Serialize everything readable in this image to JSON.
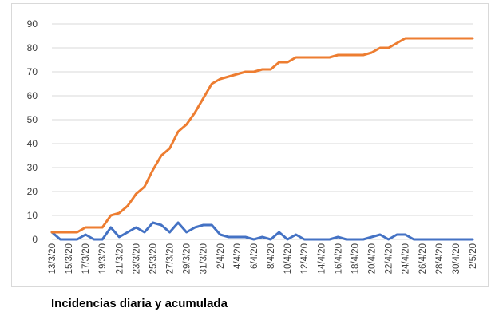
{
  "caption": "Incidencias diaria y acumulada",
  "chart_data": {
    "type": "line",
    "title": "",
    "xlabel": "",
    "ylabel": "",
    "ylim": [
      0,
      90
    ],
    "yticks": [
      0,
      10,
      20,
      30,
      40,
      50,
      60,
      70,
      80,
      90
    ],
    "grid": true,
    "legend": "none",
    "x": [
      "13/3/20",
      "14/3/20",
      "15/3/20",
      "16/3/20",
      "17/3/20",
      "18/3/20",
      "19/3/20",
      "20/3/20",
      "21/3/20",
      "22/3/20",
      "23/3/20",
      "24/3/20",
      "25/3/20",
      "26/3/20",
      "27/3/20",
      "28/3/20",
      "29/3/20",
      "30/3/20",
      "31/3/20",
      "1/4/20",
      "2/4/20",
      "3/4/20",
      "4/4/20",
      "5/4/20",
      "6/4/20",
      "7/4/20",
      "8/4/20",
      "9/4/20",
      "10/4/20",
      "11/4/20",
      "12/4/20",
      "13/4/20",
      "14/4/20",
      "15/4/20",
      "16/4/20",
      "17/4/20",
      "18/4/20",
      "19/4/20",
      "20/4/20",
      "21/4/20",
      "22/4/20",
      "23/4/20",
      "24/4/20",
      "25/4/20",
      "26/4/20",
      "27/4/20",
      "28/4/20",
      "29/4/20",
      "30/4/20",
      "1/5/20",
      "2/5/20"
    ],
    "tick_labels": [
      "13/3/20",
      "15/3/20",
      "17/3/20",
      "19/3/20",
      "21/3/20",
      "23/3/20",
      "25/3/20",
      "27/3/20",
      "29/3/20",
      "31/3/20",
      "2/4/20",
      "4/4/20",
      "6/4/20",
      "8/4/20",
      "10/4/20",
      "12/4/20",
      "14/4/20",
      "16/4/20",
      "18/4/20",
      "20/4/20",
      "22/4/20",
      "24/4/20",
      "26/4/20",
      "28/4/20",
      "30/4/20",
      "2/5/20"
    ],
    "series": [
      {
        "color": "#4472c4",
        "values": [
          3,
          0,
          0,
          0,
          2,
          0,
          0,
          5,
          1,
          3,
          5,
          3,
          7,
          6,
          3,
          7,
          3,
          5,
          6,
          6,
          2,
          1,
          1,
          1,
          0,
          1,
          0,
          3,
          0,
          2,
          0,
          0,
          0,
          0,
          1,
          0,
          0,
          0,
          1,
          2,
          0,
          2,
          2,
          0,
          0,
          0,
          0,
          0,
          0,
          0,
          0
        ]
      },
      {
        "color": "#ed7d31",
        "values": [
          3,
          3,
          3,
          3,
          5,
          5,
          5,
          10,
          11,
          14,
          19,
          22,
          29,
          35,
          38,
          45,
          48,
          53,
          59,
          65,
          67,
          68,
          69,
          70,
          70,
          71,
          71,
          74,
          74,
          76,
          76,
          76,
          76,
          76,
          77,
          77,
          77,
          77,
          78,
          80,
          80,
          82,
          84,
          84,
          84,
          84,
          84,
          84,
          84,
          84,
          84
        ]
      }
    ]
  }
}
